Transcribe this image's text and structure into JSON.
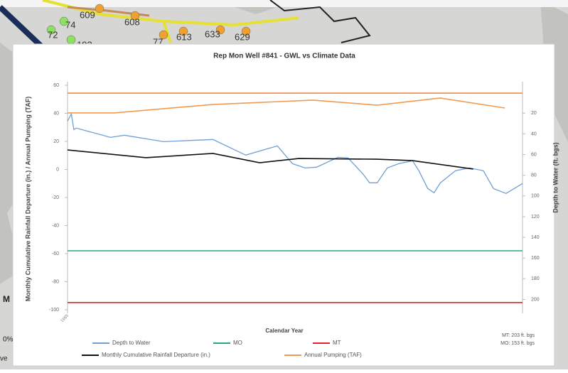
{
  "map": {
    "labels": [
      "609",
      "608",
      "74",
      "72",
      "77",
      "613",
      "633",
      "629",
      "193"
    ],
    "side_texts": [
      "M",
      "0%",
      "ve"
    ]
  },
  "chart_data": {
    "type": "line",
    "title": "Rep Mon Well #841 - GWL vs Climate Data",
    "x_label": "Calendar Year",
    "y_label": "Monthly Cumulative Rainfall Departure (in.) / Annual Pumping (TAF)",
    "y2_label": "Depth to Water (ft. bgs)",
    "annotations": [
      "MT: 203 ft. bgs",
      "MO: 153 ft. bgs"
    ],
    "xlim": [
      1985,
      2021
    ],
    "xticks": [
      {
        "value": 1985,
        "label": "1985"
      }
    ],
    "ylim": [
      -100,
      60
    ],
    "yticks": [
      60,
      40,
      20,
      0,
      -20,
      -40,
      -60,
      -80,
      -100
    ],
    "y2lim": [
      210,
      -7
    ],
    "y2ticks": [
      20,
      40,
      60,
      80,
      100,
      120,
      140,
      160,
      180,
      200
    ],
    "series": [
      {
        "name": "Depth to Water",
        "color": "#6f9fd3",
        "axis": "y2",
        "x": [
          1985.0,
          1985.3,
          1985.5,
          1985.7,
          1988.4,
          1989.5,
          1992.6,
          1996.5,
          1999.1,
          2001.6,
          2002.8,
          2003.8,
          2004.7,
          2006.4,
          2007.2,
          2008.4,
          2008.9,
          2009.5,
          2010.3,
          2011.2,
          2012.3,
          2012.8,
          2013.5,
          2014.0,
          2014.5,
          2015.7,
          2016.8,
          2017.9,
          2018.7,
          2019.7,
          2021.0
        ],
        "values": [
          27.6,
          20.7,
          35.8,
          34.4,
          43.4,
          41.3,
          47.5,
          45.4,
          60.5,
          51.6,
          68.8,
          72.9,
          72.2,
          62.6,
          63.3,
          79.1,
          87.3,
          87.3,
          72.9,
          68.8,
          66.0,
          75.6,
          92.8,
          96.9,
          87.3,
          75.6,
          72.9,
          75.6,
          92.8,
          97.6,
          88.0
        ]
      },
      {
        "name": "MO",
        "color": "#2aa876",
        "axis": "y2",
        "x": [
          1985,
          2021
        ],
        "values": [
          153,
          153
        ]
      },
      {
        "name": "MT",
        "color": "#e8202a",
        "axis": "y2",
        "x": [
          1985,
          2021
        ],
        "values": [
          203,
          203
        ]
      },
      {
        "name": "Monthly Cumulative Rainfall Departure (in.)",
        "color": "#111111",
        "x": [
          1985.0,
          1991.2,
          1996.5,
          2000.2,
          2003.3,
          2009.5,
          2012.3,
          2017.1
        ],
        "values": [
          13.9,
          8.4,
          11.4,
          4.8,
          7.8,
          7.3,
          6.3,
          0.3
        ]
      },
      {
        "name": "Annual Pumping (TAF)",
        "color": "#f39a4e",
        "x": [
          1985.0,
          1988.7,
          1996.5,
          2004.4,
          2009.5,
          2014.5,
          2019.6
        ],
        "values": [
          40.3,
          40.3,
          46.3,
          49.4,
          45.8,
          50.9,
          43.8
        ]
      },
      {
        "color": "#f08a4b",
        "x": [
          1985,
          2021
        ],
        "values": [
          54.4,
          54.4
        ]
      }
    ]
  }
}
